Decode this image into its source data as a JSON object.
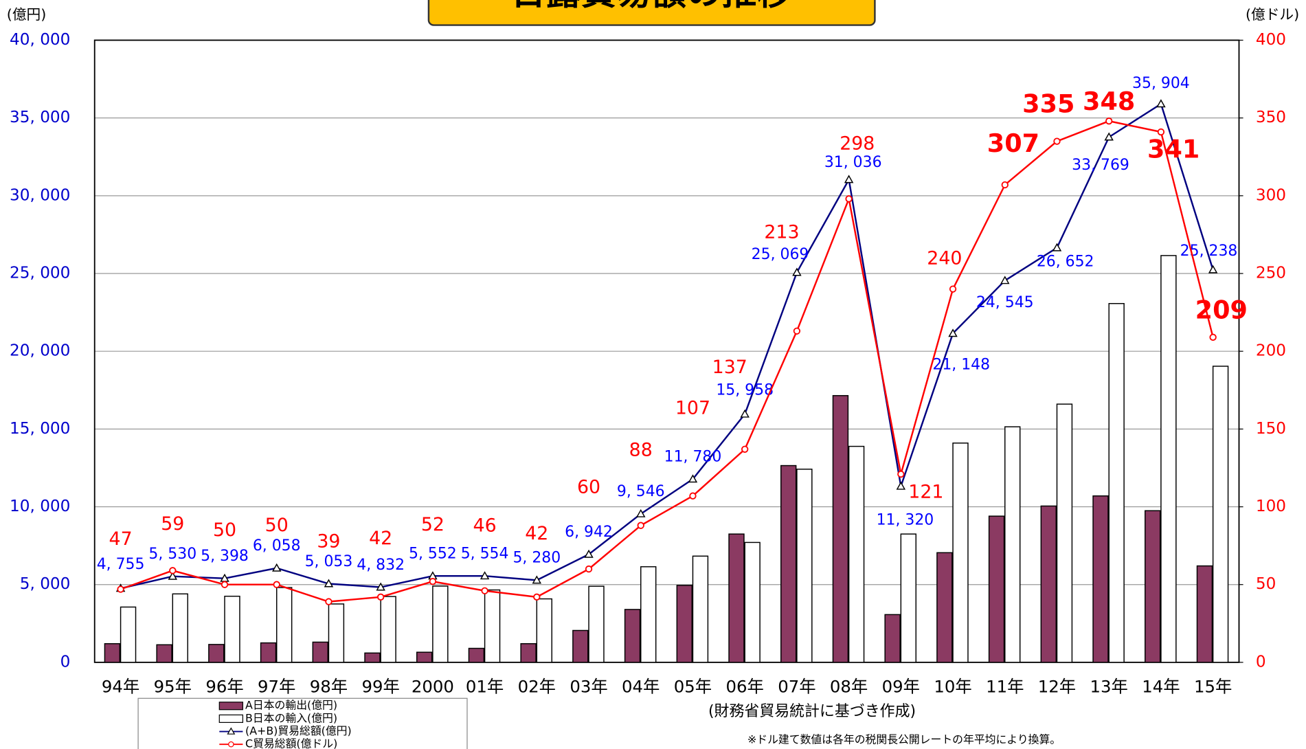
{
  "chart_data": {
    "type": "bar",
    "title": "日露貿易額の推移",
    "y_label": "(億円)",
    "y2_label": "(億ドル)",
    "source": "(財務省貿易統計に基づき作成)",
    "note": "※ドル建て数値は各年の税関長公開レートの年平均により換算。",
    "categories": [
      "94年",
      "95年",
      "96年",
      "97年",
      "98年",
      "99年",
      "2000",
      "01年",
      "02年",
      "03年",
      "04年",
      "05年",
      "06年",
      "07年",
      "08年",
      "09年",
      "10年",
      "11年",
      "12年",
      "13年",
      "14年",
      "15年"
    ],
    "ylim": [
      0,
      40000
    ],
    "yticks": [
      0,
      {
        "value": 5000,
        "label": "5, 000"
      },
      {
        "value": 10000,
        "label": "10, 000"
      },
      {
        "value": 15000,
        "label": "15, 000"
      },
      {
        "value": 20000,
        "label": "20, 000"
      },
      {
        "value": 25000,
        "label": "25, 000"
      },
      {
        "value": 30000,
        "label": "30, 000"
      },
      {
        "value": 35000,
        "label": "35, 000"
      },
      {
        "value": 40000,
        "label": "40, 000"
      }
    ],
    "y2lim": [
      0,
      400
    ],
    "y2ticks": [
      0,
      50,
      100,
      150,
      200,
      250,
      300,
      350,
      400
    ],
    "grid": true,
    "series": [
      {
        "name": "A日本の輸出(億円)",
        "type": "bar",
        "color": "#8b3a62",
        "values": [
          1200,
          1130,
          1150,
          1250,
          1300,
          600,
          650,
          900,
          1200,
          2050,
          3400,
          4950,
          8250,
          12650,
          17150,
          3070,
          7050,
          9400,
          10050,
          10700,
          9750,
          6200
        ]
      },
      {
        "name": "B日本の輸入(億円)",
        "type": "bar",
        "color": "#ffffff",
        "values": [
          3555,
          4400,
          4250,
          4808,
          3753,
          4232,
          4902,
          4654,
          4080,
          4892,
          6146,
          6830,
          7708,
          12419,
          13886,
          8250,
          14098,
          15145,
          16602,
          23069,
          26154,
          19038
        ]
      },
      {
        "name": "(A+B)貿易総額(億円)",
        "type": "line",
        "color": "#000080",
        "values": [
          4755,
          5530,
          5398,
          6058,
          5053,
          4832,
          5552,
          5554,
          5280,
          6942,
          9546,
          11780,
          15958,
          25069,
          31036,
          11320,
          21148,
          24545,
          26652,
          33769,
          35904,
          25238
        ],
        "value_labels": [
          "4, 755",
          "5, 530",
          "5, 398",
          "6, 058",
          "5, 053",
          "4, 832",
          "5, 552",
          "5, 554",
          "5, 280",
          "6, 942",
          "9, 546",
          "11, 780",
          "15, 958",
          "25, 069",
          "31, 036",
          "11, 320",
          "21, 148",
          "24, 545",
          "26, 652",
          "33, 769",
          "35, 904",
          "25, 238"
        ]
      },
      {
        "name": "C貿易総額(億ドル)",
        "type": "line",
        "axis": "y2",
        "color": "#ff0000",
        "values": [
          47,
          59,
          50,
          50,
          39,
          42,
          52,
          46,
          42,
          60,
          88,
          107,
          137,
          213,
          298,
          121,
          240,
          307,
          335,
          348,
          341,
          209
        ]
      }
    ]
  }
}
